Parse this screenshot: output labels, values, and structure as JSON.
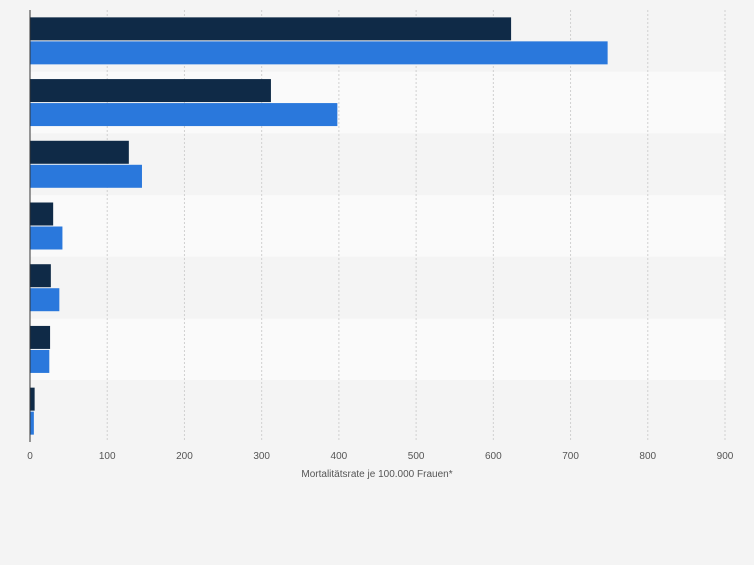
{
  "chart_data": {
    "type": "bar",
    "orientation": "horizontal",
    "categories": [
      "",
      "",
      "",
      "",
      "",
      "",
      ""
    ],
    "series": [
      {
        "color": "#0f2a47",
        "values": [
          623,
          312,
          128,
          30,
          27,
          26,
          6
        ]
      },
      {
        "color": "#2a78dc",
        "values": [
          748,
          398,
          145,
          42,
          38,
          25,
          5
        ]
      }
    ],
    "xlabel": "Mortalitätsrate je 100.000 Frauen*",
    "ylabel": "",
    "xlim": [
      0,
      900
    ],
    "xticks": [
      "0",
      "100",
      "200",
      "300",
      "400",
      "500",
      "600",
      "700",
      "800",
      "900"
    ],
    "grid": true,
    "legend": "none"
  }
}
